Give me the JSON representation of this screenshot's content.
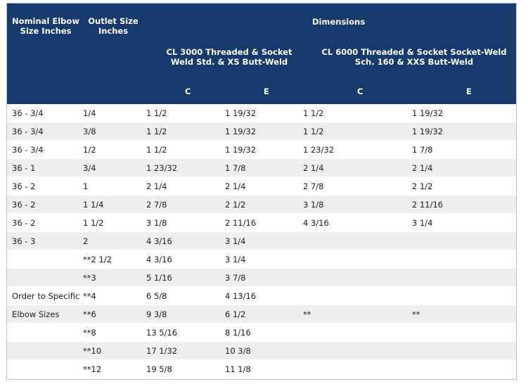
{
  "header": {
    "nominal": "Nominal Elbow Size Inches",
    "outlet": "Outlet Size Inches",
    "dimensions": "Dimensions",
    "cl3000": "CL 3000 Threaded & Socket Weld Std. & XS Butt-Weld",
    "cl6000": "CL 6000 Threaded & Socket Socket-Weld Sch. 160 & XXS Butt-Weld",
    "c1": "C",
    "e1": "E",
    "c2": "C",
    "e2": "E"
  },
  "rows": [
    [
      "36 - 3/4",
      "1/4",
      "1 1/2",
      "1 19/32",
      "1 1/2",
      "1 19/32"
    ],
    [
      "36 - 3/4",
      "3/8",
      "1 1/2",
      "1 19/32",
      "1 1/2",
      "1 19/32"
    ],
    [
      "36 - 3/4",
      "1/2",
      "1 1/2",
      "1 19/32",
      "1 23/32",
      "1 7/8"
    ],
    [
      "36 - 1",
      "3/4",
      "1 23/32",
      "1 7/8",
      "2 1/4",
      "2 1/4"
    ],
    [
      "36 - 2",
      "1",
      "2 1/4",
      "2 1/4",
      "2 7/8",
      "2 1/2"
    ],
    [
      "36 - 2",
      "1 1/4",
      "2 7/8",
      "2 1/2",
      "3 1/8",
      "2 11/16"
    ],
    [
      "36 - 2",
      "1 1/2",
      "3 1/8",
      "2 11/16",
      "4 3/16",
      "3 1/4"
    ],
    [
      "36 - 3",
      "2",
      "4 3/16",
      "3 1/4",
      "",
      ""
    ],
    [
      "",
      "**2 1/2",
      "4 3/16",
      "3 1/4",
      "",
      ""
    ],
    [
      "",
      "**3",
      "5 1/16",
      "3 7/8",
      "",
      ""
    ],
    [
      "Order to Specific",
      "**4",
      "6 5/8",
      "4 13/16",
      "",
      ""
    ],
    [
      "Elbow Sizes",
      "**6",
      "9 3/8",
      "6 1/2",
      "**",
      "**"
    ],
    [
      "",
      "**8",
      "13 5/16",
      "8 1/16",
      "",
      ""
    ],
    [
      "",
      "**10",
      "17 1/32",
      "10 3/8",
      "",
      ""
    ],
    [
      "",
      "**12",
      "19 5/8",
      "11 1/8",
      "",
      ""
    ]
  ]
}
